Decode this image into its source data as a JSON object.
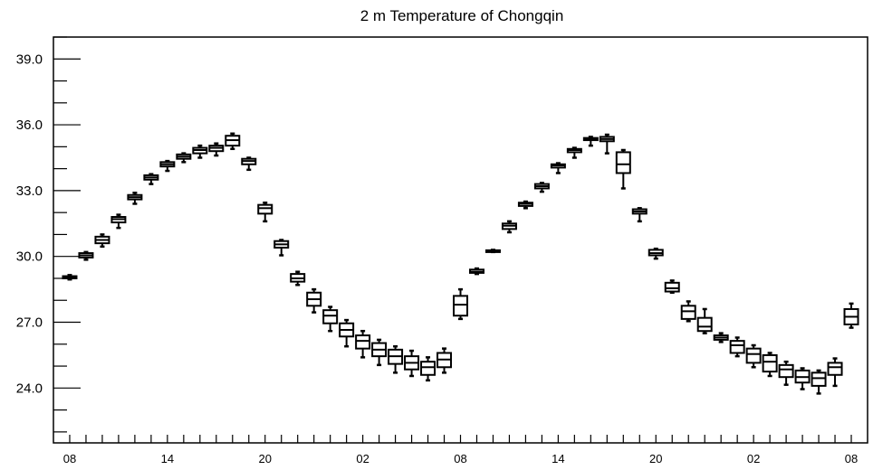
{
  "chart_data": {
    "type": "boxplot",
    "title": "2 m Temperature of Chongqin",
    "xlabel": "",
    "ylabel": "",
    "ylim": [
      21.5,
      40.0
    ],
    "yticks": [
      "24.0",
      "27.0",
      "30.0",
      "33.0",
      "36.0",
      "39.0"
    ],
    "ytick_values": [
      24,
      27,
      30,
      33,
      36,
      39
    ],
    "xtick_labels": [
      "08",
      "14",
      "20",
      "02",
      "08",
      "14",
      "20",
      "02",
      "08"
    ],
    "xtick_positions": [
      0,
      6,
      12,
      18,
      24,
      30,
      36,
      42,
      48
    ],
    "xlim": [
      -1,
      49
    ],
    "grid": false,
    "series": [
      {
        "boxes": [
          {
            "x": 0,
            "min": 28.95,
            "q1": 29.0,
            "median": 29.05,
            "q3": 29.1,
            "max": 29.15
          },
          {
            "x": 1,
            "min": 29.85,
            "q1": 29.95,
            "median": 30.05,
            "q3": 30.15,
            "max": 30.2
          },
          {
            "x": 2,
            "min": 30.45,
            "q1": 30.6,
            "median": 30.75,
            "q3": 30.9,
            "max": 31.0
          },
          {
            "x": 3,
            "min": 31.3,
            "q1": 31.55,
            "median": 31.7,
            "q3": 31.8,
            "max": 31.9
          },
          {
            "x": 4,
            "min": 32.4,
            "q1": 32.6,
            "median": 32.7,
            "q3": 32.8,
            "max": 32.9
          },
          {
            "x": 5,
            "min": 33.3,
            "q1": 33.5,
            "median": 33.6,
            "q3": 33.7,
            "max": 33.75
          },
          {
            "x": 6,
            "min": 33.9,
            "q1": 34.1,
            "median": 34.2,
            "q3": 34.3,
            "max": 34.35
          },
          {
            "x": 7,
            "min": 34.3,
            "q1": 34.45,
            "median": 34.55,
            "q3": 34.65,
            "max": 34.7
          },
          {
            "x": 8,
            "min": 34.5,
            "q1": 34.7,
            "median": 34.85,
            "q3": 34.95,
            "max": 35.05
          },
          {
            "x": 9,
            "min": 34.6,
            "q1": 34.8,
            "median": 34.95,
            "q3": 35.05,
            "max": 35.15
          },
          {
            "x": 10,
            "min": 34.9,
            "q1": 35.05,
            "median": 35.3,
            "q3": 35.5,
            "max": 35.6
          },
          {
            "x": 11,
            "min": 33.95,
            "q1": 34.2,
            "median": 34.35,
            "q3": 34.45,
            "max": 34.5
          },
          {
            "x": 12,
            "min": 31.6,
            "q1": 31.95,
            "median": 32.2,
            "q3": 32.35,
            "max": 32.45
          },
          {
            "x": 13,
            "min": 30.05,
            "q1": 30.4,
            "median": 30.55,
            "q3": 30.7,
            "max": 30.75
          },
          {
            "x": 14,
            "min": 28.7,
            "q1": 28.85,
            "median": 29.0,
            "q3": 29.2,
            "max": 29.3
          },
          {
            "x": 15,
            "min": 27.45,
            "q1": 27.75,
            "median": 28.05,
            "q3": 28.35,
            "max": 28.5
          },
          {
            "x": 16,
            "min": 26.6,
            "q1": 26.95,
            "median": 27.3,
            "q3": 27.55,
            "max": 27.7
          },
          {
            "x": 17,
            "min": 25.9,
            "q1": 26.35,
            "median": 26.65,
            "q3": 26.95,
            "max": 27.1
          },
          {
            "x": 18,
            "min": 25.4,
            "q1": 25.8,
            "median": 26.15,
            "q3": 26.4,
            "max": 26.6
          },
          {
            "x": 19,
            "min": 25.05,
            "q1": 25.45,
            "median": 25.75,
            "q3": 26.05,
            "max": 26.2
          },
          {
            "x": 20,
            "min": 24.7,
            "q1": 25.1,
            "median": 25.45,
            "q3": 25.75,
            "max": 25.9
          },
          {
            "x": 21,
            "min": 24.55,
            "q1": 24.85,
            "median": 25.15,
            "q3": 25.45,
            "max": 25.7
          },
          {
            "x": 22,
            "min": 24.35,
            "q1": 24.6,
            "median": 24.95,
            "q3": 25.2,
            "max": 25.4
          },
          {
            "x": 23,
            "min": 24.7,
            "q1": 24.95,
            "median": 25.3,
            "q3": 25.6,
            "max": 25.8
          },
          {
            "x": 24,
            "min": 27.15,
            "q1": 27.3,
            "median": 27.8,
            "q3": 28.2,
            "max": 28.5
          },
          {
            "x": 25,
            "min": 29.2,
            "q1": 29.25,
            "median": 29.3,
            "q3": 29.4,
            "max": 29.45
          },
          {
            "x": 26,
            "min": 30.2,
            "q1": 30.22,
            "median": 30.25,
            "q3": 30.28,
            "max": 30.3
          },
          {
            "x": 27,
            "min": 31.1,
            "q1": 31.25,
            "median": 31.4,
            "q3": 31.5,
            "max": 31.6
          },
          {
            "x": 28,
            "min": 32.2,
            "q1": 32.3,
            "median": 32.4,
            "q3": 32.45,
            "max": 32.5
          },
          {
            "x": 29,
            "min": 32.95,
            "q1": 33.1,
            "median": 33.2,
            "q3": 33.3,
            "max": 33.35
          },
          {
            "x": 30,
            "min": 33.8,
            "q1": 34.05,
            "median": 34.15,
            "q3": 34.2,
            "max": 34.25
          },
          {
            "x": 31,
            "min": 34.5,
            "q1": 34.75,
            "median": 34.85,
            "q3": 34.9,
            "max": 34.95
          },
          {
            "x": 32,
            "min": 35.05,
            "q1": 35.3,
            "median": 35.35,
            "q3": 35.4,
            "max": 35.45
          },
          {
            "x": 33,
            "min": 34.7,
            "q1": 35.25,
            "median": 35.35,
            "q3": 35.45,
            "max": 35.55
          },
          {
            "x": 34,
            "min": 33.1,
            "q1": 33.8,
            "median": 34.2,
            "q3": 34.75,
            "max": 34.85
          },
          {
            "x": 35,
            "min": 31.6,
            "q1": 31.95,
            "median": 32.05,
            "q3": 32.15,
            "max": 32.2
          },
          {
            "x": 36,
            "min": 29.9,
            "q1": 30.05,
            "median": 30.15,
            "q3": 30.3,
            "max": 30.35
          },
          {
            "x": 37,
            "min": 28.35,
            "q1": 28.4,
            "median": 28.55,
            "q3": 28.8,
            "max": 28.9
          },
          {
            "x": 38,
            "min": 27.05,
            "q1": 27.15,
            "median": 27.5,
            "q3": 27.75,
            "max": 27.95
          },
          {
            "x": 39,
            "min": 26.5,
            "q1": 26.6,
            "median": 26.8,
            "q3": 27.2,
            "max": 27.6
          },
          {
            "x": 40,
            "min": 26.1,
            "q1": 26.2,
            "median": 26.3,
            "q3": 26.4,
            "max": 26.5
          },
          {
            "x": 41,
            "min": 25.45,
            "q1": 25.6,
            "median": 25.95,
            "q3": 26.15,
            "max": 26.3
          },
          {
            "x": 42,
            "min": 24.95,
            "q1": 25.15,
            "median": 25.55,
            "q3": 25.8,
            "max": 25.95
          },
          {
            "x": 43,
            "min": 24.55,
            "q1": 24.75,
            "median": 25.2,
            "q3": 25.5,
            "max": 25.6
          },
          {
            "x": 44,
            "min": 24.15,
            "q1": 24.5,
            "median": 24.85,
            "q3": 25.05,
            "max": 25.2
          },
          {
            "x": 45,
            "min": 23.95,
            "q1": 24.25,
            "median": 24.5,
            "q3": 24.8,
            "max": 24.9
          },
          {
            "x": 46,
            "min": 23.75,
            "q1": 24.1,
            "median": 24.45,
            "q3": 24.7,
            "max": 24.8
          },
          {
            "x": 47,
            "min": 24.1,
            "q1": 24.6,
            "median": 24.95,
            "q3": 25.15,
            "max": 25.35
          },
          {
            "x": 48,
            "min": 26.75,
            "q1": 26.9,
            "median": 27.25,
            "q3": 27.6,
            "max": 27.85
          }
        ]
      }
    ]
  }
}
